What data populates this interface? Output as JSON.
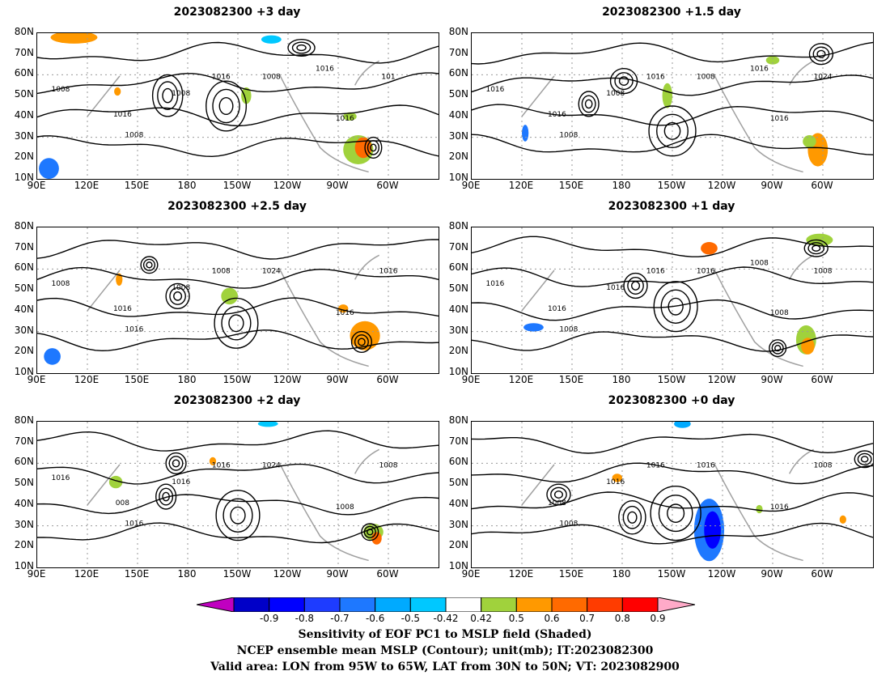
{
  "chart_data": [
    {
      "type": "heatmap",
      "title": "2023082300 +3 day",
      "ylim": [
        10,
        80
      ],
      "y_ticks": [
        "80N",
        "70N",
        "60N",
        "50N",
        "40N",
        "30N",
        "20N",
        "10N"
      ],
      "x_ticks": [
        "90E",
        "120E",
        "150E",
        "180",
        "150W",
        "120W",
        "90W",
        "60W"
      ],
      "contour_labels": [
        "1008",
        "1016",
        "1016",
        "1008",
        "1008",
        "101",
        "1016",
        "1008",
        "1016"
      ]
    },
    {
      "type": "heatmap",
      "title": "2023082300 +1.5 day",
      "ylim": [
        10,
        80
      ],
      "y_ticks": [
        "80N",
        "70N",
        "60N",
        "50N",
        "40N",
        "30N",
        "20N",
        "10N"
      ],
      "x_ticks": [
        "90E",
        "120E",
        "150E",
        "180",
        "150W",
        "120W",
        "90W",
        "60W"
      ],
      "contour_labels": [
        "1008",
        "1016",
        "1016",
        "1008",
        "1008",
        "1024",
        "1016",
        "1016",
        "1016"
      ]
    },
    {
      "type": "heatmap",
      "title": "2023082300 +2.5 day",
      "ylim": [
        10,
        80
      ],
      "y_ticks": [
        "80N",
        "70N",
        "60N",
        "50N",
        "40N",
        "30N",
        "20N",
        "10N"
      ],
      "x_ticks": [
        "90E",
        "120E",
        "150E",
        "180",
        "150W",
        "120W",
        "90W",
        "60W"
      ],
      "contour_labels": [
        "1008",
        "1008",
        "1016",
        "1016",
        "1024",
        "1016",
        "1016",
        "1008"
      ]
    },
    {
      "type": "heatmap",
      "title": "2023082300 +1 day",
      "ylim": [
        10,
        80
      ],
      "y_ticks": [
        "80N",
        "70N",
        "60N",
        "50N",
        "40N",
        "30N",
        "20N",
        "10N"
      ],
      "x_ticks": [
        "90E",
        "120E",
        "150E",
        "180",
        "150W",
        "120W",
        "90W",
        "60W"
      ],
      "contour_labels": [
        "1016",
        "1016",
        "1016",
        "1008",
        "1016",
        "1008",
        "1008",
        "1016",
        "1008"
      ]
    },
    {
      "type": "heatmap",
      "title": "2023082300 +2 day",
      "ylim": [
        10,
        80
      ],
      "y_ticks": [
        "80N",
        "70N",
        "60N",
        "50N",
        "40N",
        "30N",
        "20N",
        "10N"
      ],
      "x_ticks": [
        "90E",
        "120E",
        "150E",
        "180",
        "150W",
        "120W",
        "90W",
        "60W"
      ],
      "contour_labels": [
        "1016",
        "1016",
        "008",
        "1016",
        "1024",
        "1008",
        "1008",
        "1016"
      ]
    },
    {
      "type": "heatmap",
      "title": "2023082300 +0 day",
      "ylim": [
        10,
        80
      ],
      "y_ticks": [
        "80N",
        "70N",
        "60N",
        "50N",
        "40N",
        "30N",
        "20N",
        "10N"
      ],
      "x_ticks": [
        "90E",
        "120E",
        "150E",
        "180",
        "150W",
        "120W",
        "90W",
        "60W"
      ],
      "contour_labels": [
        "1016",
        "1016",
        "1008",
        "1008",
        "1016",
        "1008",
        "1016"
      ]
    }
  ],
  "colorbar": {
    "tick_labels": [
      "-0.9",
      "-0.8",
      "-0.7",
      "-0.6",
      "-0.5",
      "-0.42",
      "0.42",
      "0.5",
      "0.6",
      "0.7",
      "0.8",
      "0.9"
    ],
    "colors": [
      "#c000c0",
      "#0000c8",
      "#0000ff",
      "#1e3cff",
      "#1e78ff",
      "#00aaff",
      "#00c8ff",
      "#ffffff",
      "#a0d23c",
      "#ff9900",
      "#ff6a00",
      "#ff3c00",
      "#ff0000",
      "#ffaac8"
    ]
  },
  "captions": [
    "Sensitivity of EOF PC1 to MSLP field (Shaded)",
    "NCEP ensemble mean MSLP (Contour); unit(mb); IT:2023082300",
    "Valid area: LON from 95W to 65W, LAT from 30N to 50N; VT: 2023082900"
  ]
}
